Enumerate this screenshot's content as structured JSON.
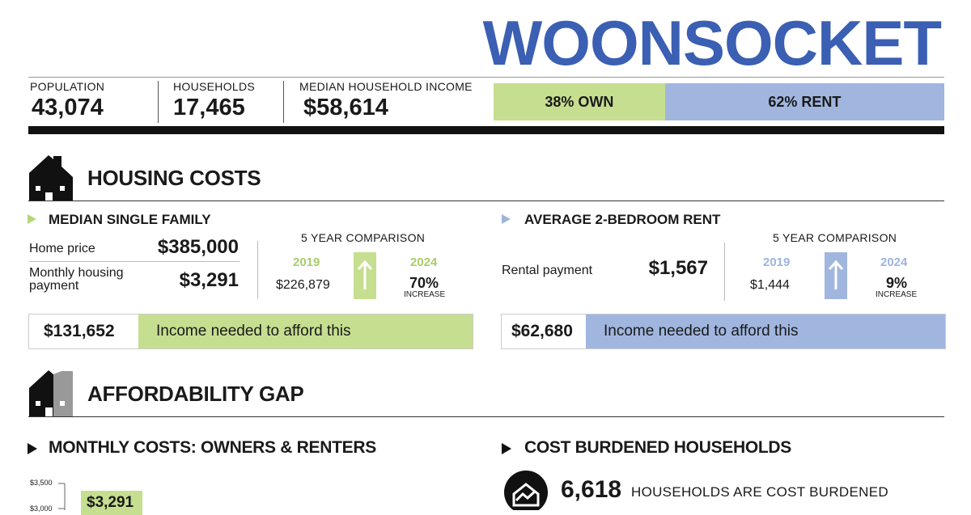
{
  "title": "WOONSOCKET",
  "stats": [
    {
      "label": "POPULATION",
      "value": "43,074"
    },
    {
      "label": "HOUSEHOLDS",
      "value": "17,465"
    },
    {
      "label": "MEDIAN HOUSEHOLD INCOME",
      "value": "$58,614"
    }
  ],
  "tenure": {
    "values": [
      38,
      62
    ],
    "value_labels": [
      "38% OWN",
      "62% RENT"
    ]
  },
  "housing_costs": {
    "heading": "HOUSING COSTS",
    "owner": {
      "title": "MEDIAN SINGLE FAMILY",
      "rows": [
        {
          "label": "Home price",
          "value": "$385,000"
        },
        {
          "label": "Monthly housing payment",
          "value": "$3,291"
        }
      ],
      "comparison": {
        "title": "5 YEAR COMPARISON",
        "year_a": "2019",
        "value_a": "$226,879",
        "year_b": "2024",
        "change": "70%",
        "change_label": "INCREASE"
      },
      "income_needed": {
        "value": "$131,652",
        "label": "Income needed to afford this"
      }
    },
    "renter": {
      "title": "AVERAGE 2-BEDROOM RENT",
      "rows": [
        {
          "label": "Rental payment",
          "value": "$1,567"
        }
      ],
      "comparison": {
        "title": "5 YEAR COMPARISON",
        "year_a": "2019",
        "value_a": "$1,444",
        "year_b": "2024",
        "change": "9%",
        "change_label": "INCREASE"
      },
      "income_needed": {
        "value": "$62,680",
        "label": "Income needed to afford this"
      }
    }
  },
  "affordability_gap": {
    "heading": "AFFORDABILITY GAP",
    "monthly_costs": {
      "title": "MONTHLY COSTS: OWNERS & RENTERS",
      "yticks": [
        "$3,500",
        "$3,000"
      ],
      "bar_label": "$3,291"
    },
    "cost_burdened": {
      "title": "COST BURDENED HOUSEHOLDS",
      "value": "6,618",
      "label": "HOUSEHOLDS ARE COST BURDENED"
    }
  }
}
